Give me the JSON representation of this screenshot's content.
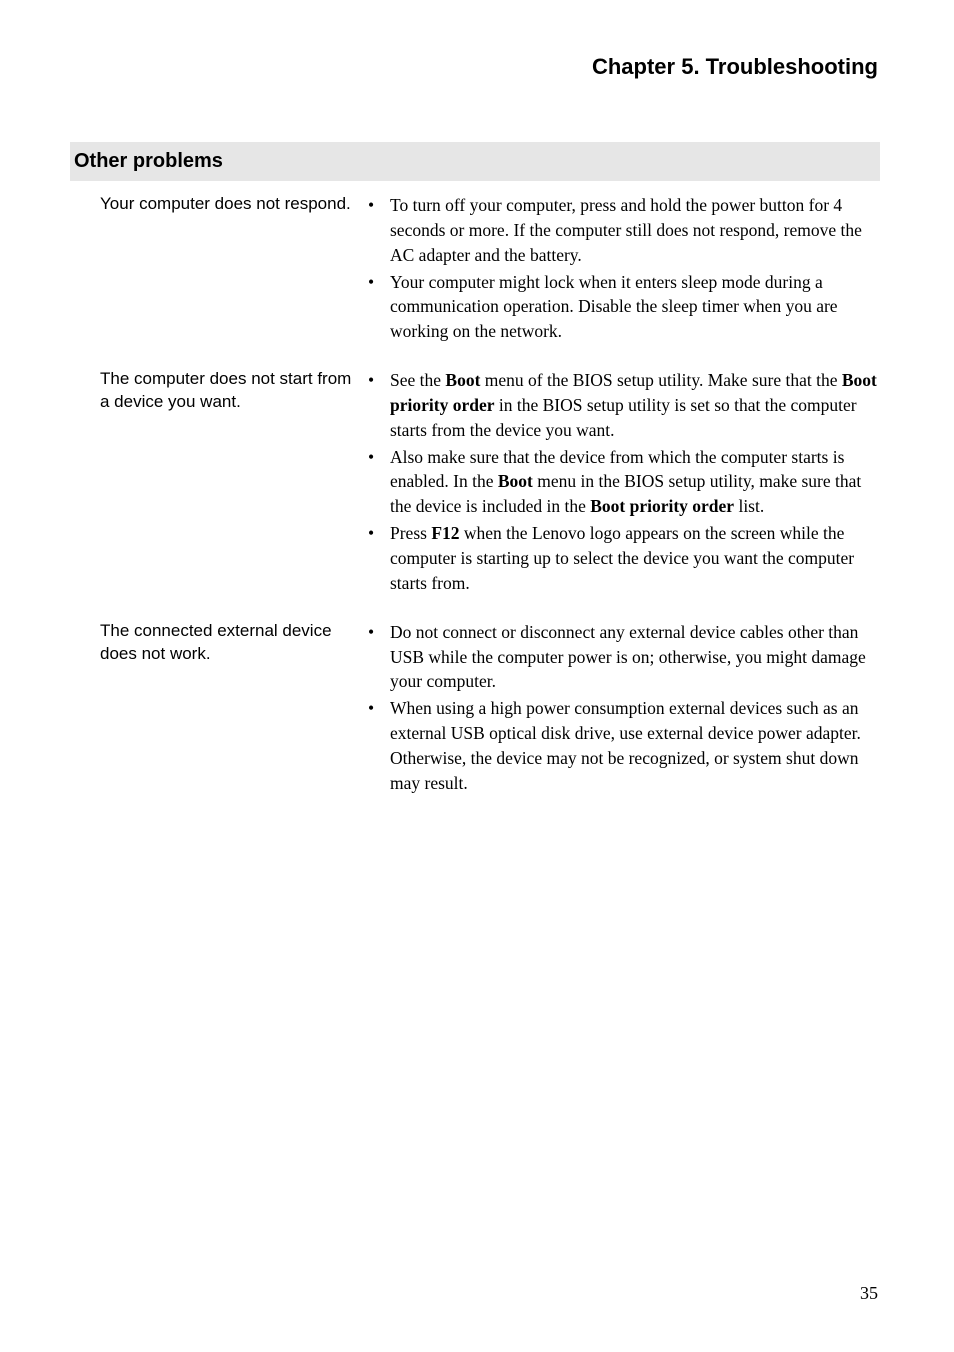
{
  "chapter_title": "Chapter 5. Troubleshooting",
  "section_header": "Other problems",
  "page_number": "35",
  "rows": [
    {
      "problem": "Your computer does not respond.",
      "bullets": [
        "To turn off your computer, press and hold the power button for 4 seconds or more. If the computer still does not respond, remove the AC adapter and the battery.",
        "Your computer might lock when it enters sleep mode during a communication operation. Disable the sleep timer when you are working on the network."
      ]
    },
    {
      "problem": "The computer does not start from a device you want.",
      "bullets": [
        "See the <span class='b'>Boot</span> menu of the BIOS setup utility. Make sure that the <span class='b'>Boot priority order</span> in the BIOS setup utility is set so that the computer starts from the device you want.",
        "Also make sure that the device from which the computer starts is enabled. In the <span class='b'>Boot</span> menu in the BIOS setup utility, make sure that the device is included in the <span class='b'>Boot priority order</span> list.",
        "Press <span class='b'>F12</span> when the Lenovo logo appears on the screen while the computer is starting up to select the device you want the computer starts from."
      ]
    },
    {
      "problem": "The connected external device does not work.",
      "bullets": [
        "Do not connect or disconnect any external device cables other than USB while the computer power is on; otherwise, you might damage your computer.",
        "When using a high power consumption external devices such as an external USB optical disk drive, use external device power adapter. Otherwise, the device may not be recognized, or system shut down may result."
      ]
    }
  ]
}
